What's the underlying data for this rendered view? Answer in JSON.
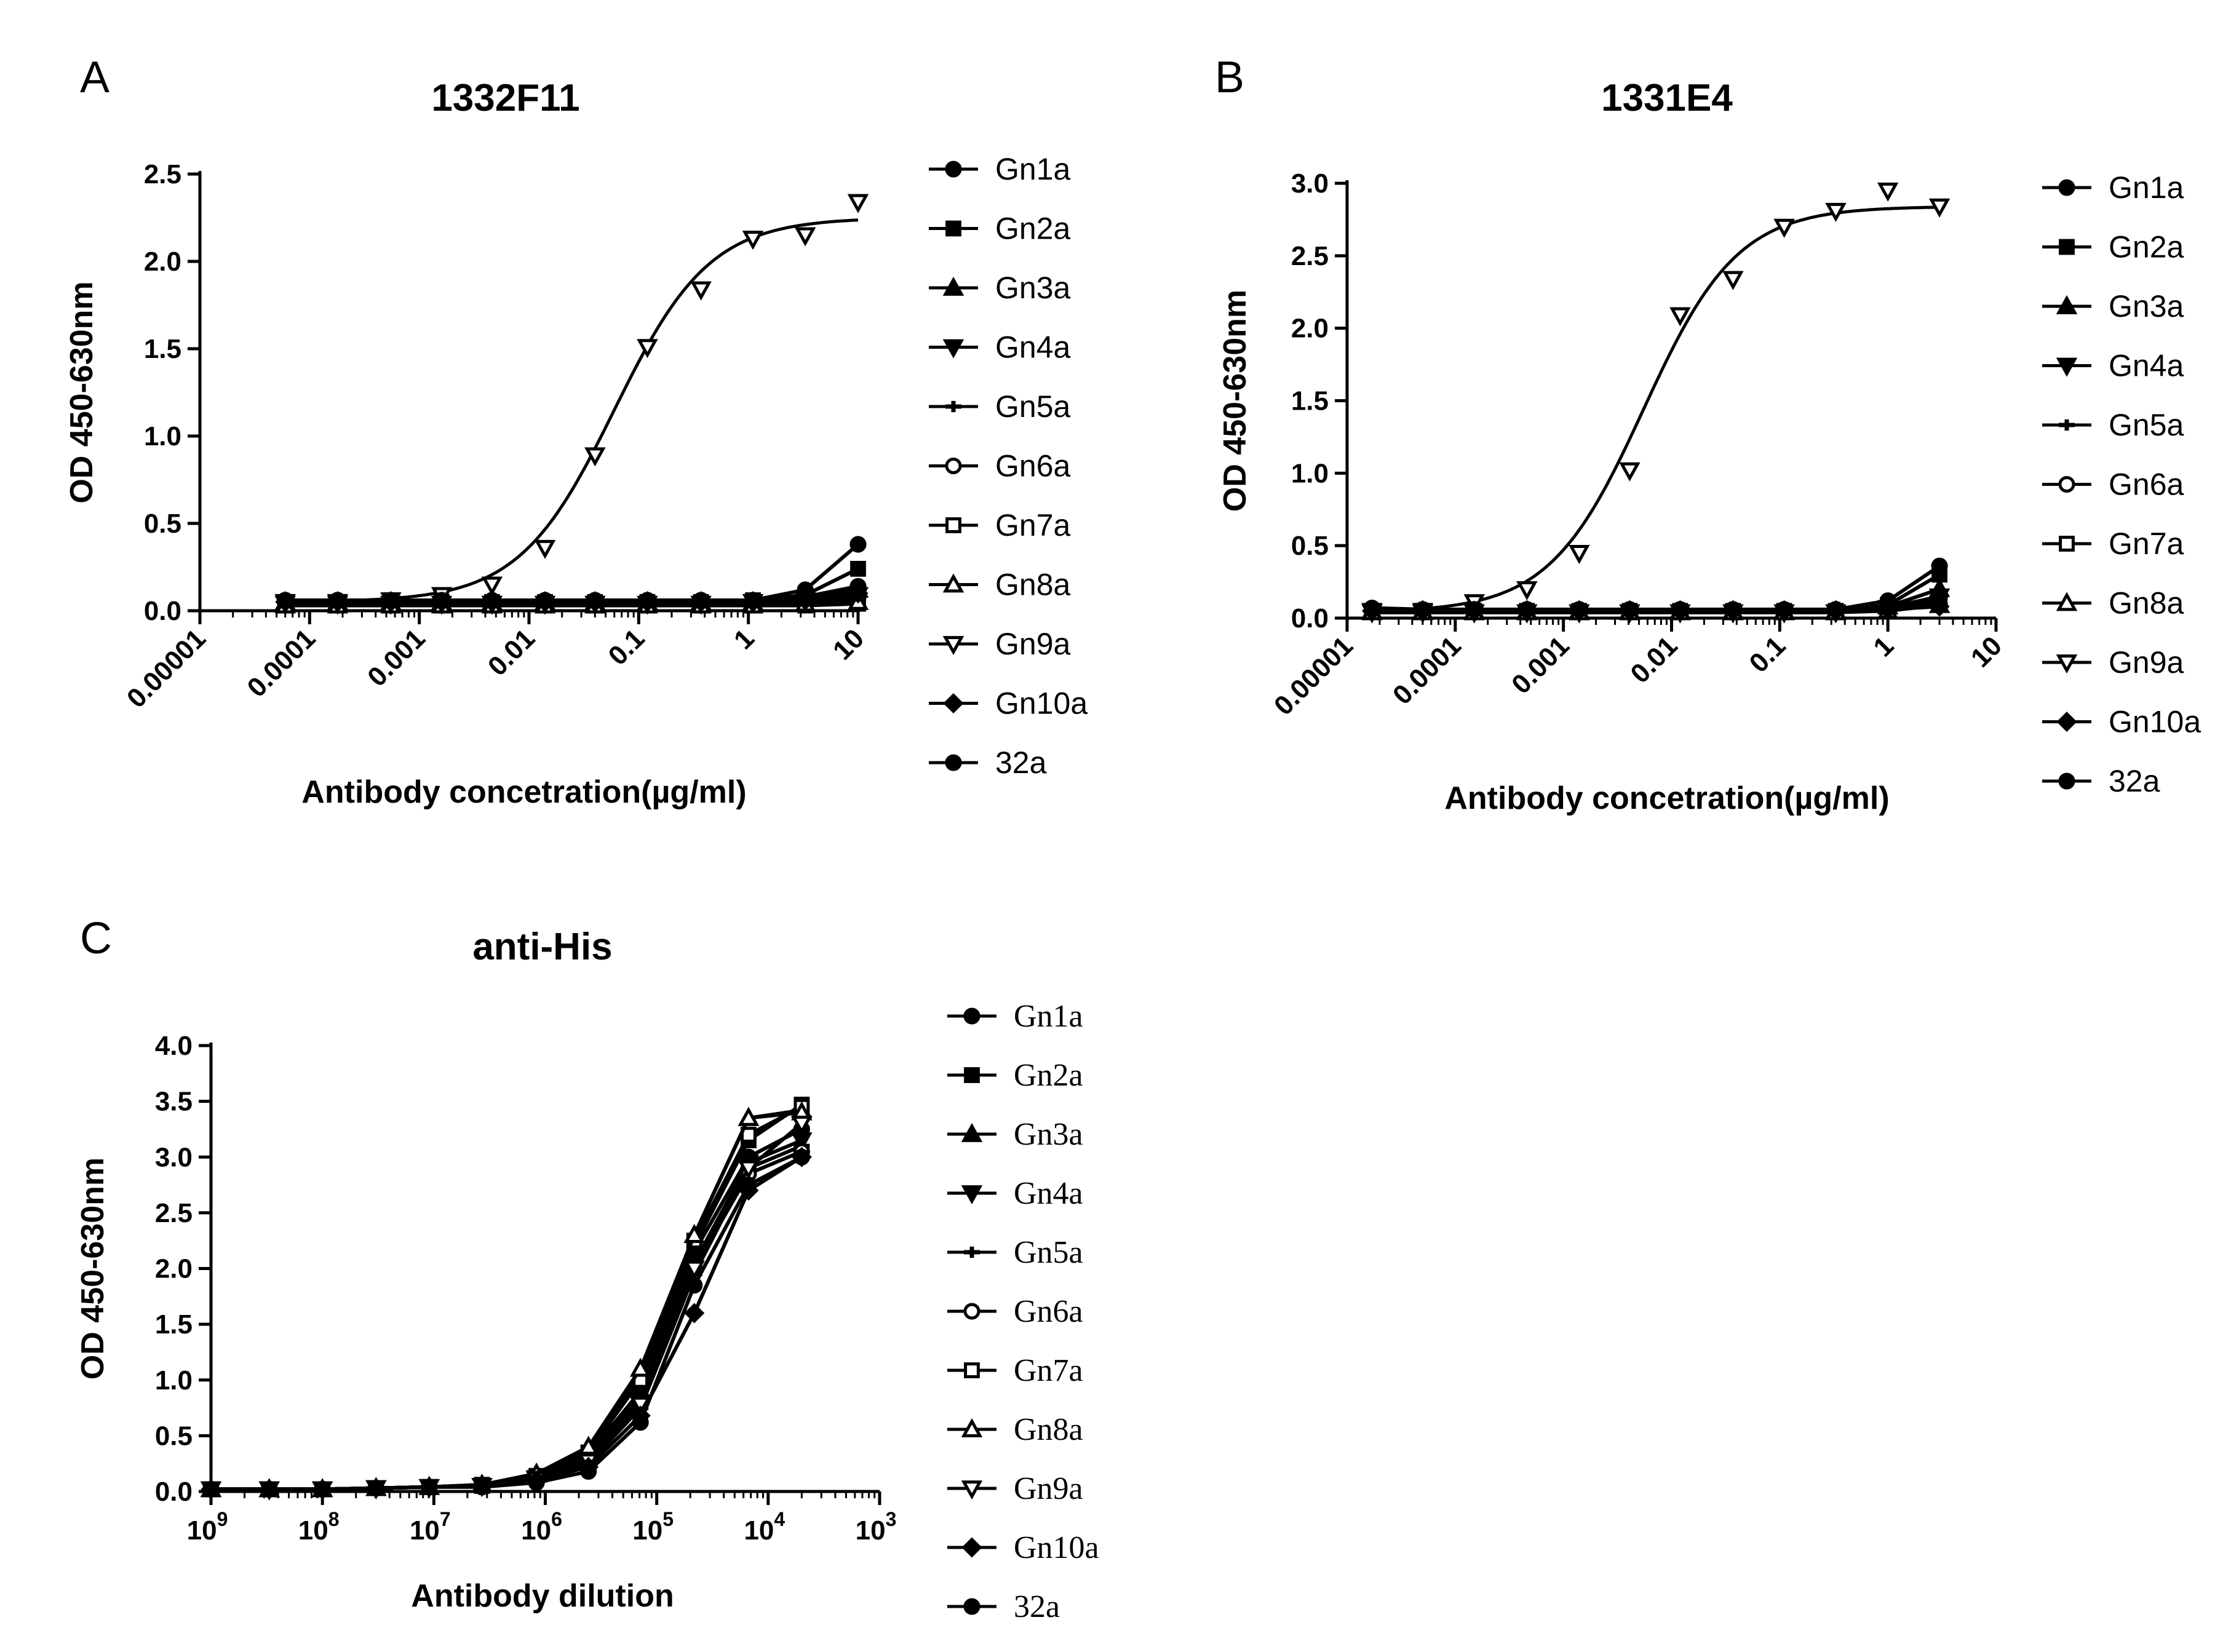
{
  "figure": {
    "background": "#ffffff",
    "ink": "#000000"
  },
  "chart_data": [
    {
      "panel": "A",
      "type": "line",
      "title": "1332F11",
      "xlabel": "Antibody concetration(µg/ml)",
      "ylabel": "OD 450-630nm",
      "xscale": "log10",
      "xlim": [
        1e-05,
        10
      ],
      "ylim": [
        0,
        2.5
      ],
      "xtick_labels": [
        "0.00001",
        "0.0001",
        "0.001",
        "0.01",
        "0.1",
        "1",
        "10"
      ],
      "ytick_labels": [
        "0.0",
        "0.5",
        "1.0",
        "1.5",
        "2.0",
        "2.5"
      ],
      "legend_position": "right",
      "x": [
        6e-05,
        0.00018,
        0.00055,
        0.0016,
        0.0046,
        0.014,
        0.04,
        0.12,
        0.37,
        1.1,
        3.3,
        10
      ],
      "series": [
        {
          "name": "Gn1a",
          "marker": "circle",
          "values": [
            0.06,
            0.06,
            0.06,
            0.06,
            0.05,
            0.05,
            0.05,
            0.05,
            0.05,
            0.06,
            0.12,
            0.38
          ]
        },
        {
          "name": "Gn2a",
          "marker": "square",
          "values": [
            0.05,
            0.05,
            0.05,
            0.05,
            0.05,
            0.05,
            0.05,
            0.05,
            0.05,
            0.06,
            0.09,
            0.24
          ]
        },
        {
          "name": "Gn3a",
          "marker": "triangle-up",
          "values": [
            0.05,
            0.05,
            0.05,
            0.05,
            0.05,
            0.05,
            0.05,
            0.05,
            0.05,
            0.05,
            0.07,
            0.12
          ]
        },
        {
          "name": "Gn4a",
          "marker": "triangle-down",
          "values": [
            0.04,
            0.04,
            0.04,
            0.04,
            0.04,
            0.04,
            0.04,
            0.04,
            0.04,
            0.05,
            0.06,
            0.09
          ]
        },
        {
          "name": "Gn5a",
          "marker": "plus",
          "values": [
            0.04,
            0.04,
            0.04,
            0.04,
            0.04,
            0.04,
            0.04,
            0.04,
            0.04,
            0.04,
            0.05,
            0.07
          ]
        },
        {
          "name": "Gn6a",
          "marker": "circle-open",
          "values": [
            0.05,
            0.05,
            0.05,
            0.05,
            0.05,
            0.05,
            0.05,
            0.05,
            0.05,
            0.05,
            0.06,
            0.08
          ]
        },
        {
          "name": "Gn7a",
          "marker": "square-open",
          "values": [
            0.03,
            0.03,
            0.03,
            0.03,
            0.03,
            0.03,
            0.03,
            0.03,
            0.03,
            0.03,
            0.03,
            0.04
          ]
        },
        {
          "name": "Gn8a",
          "marker": "triangle-up-open",
          "values": [
            0.03,
            0.03,
            0.03,
            0.03,
            0.03,
            0.03,
            0.03,
            0.03,
            0.03,
            0.03,
            0.04,
            0.05
          ]
        },
        {
          "name": "Gn9a",
          "marker": "triangle-down-open",
          "fit": {
            "bottom": 0.05,
            "top": 2.25,
            "ec50": 0.06,
            "hill": 1.0
          },
          "values": [
            0.05,
            0.05,
            0.06,
            0.09,
            0.15,
            0.36,
            0.89,
            1.51,
            1.84,
            2.13,
            2.15,
            2.34
          ]
        },
        {
          "name": "Gn10a",
          "marker": "diamond",
          "values": [
            0.05,
            0.05,
            0.05,
            0.05,
            0.05,
            0.05,
            0.05,
            0.05,
            0.05,
            0.05,
            0.06,
            0.1
          ]
        },
        {
          "name": "32a",
          "marker": "circle",
          "values": [
            0.06,
            0.06,
            0.06,
            0.06,
            0.06,
            0.06,
            0.06,
            0.06,
            0.06,
            0.06,
            0.08,
            0.14
          ]
        }
      ]
    },
    {
      "panel": "B",
      "type": "line",
      "title": "1331E4",
      "xlabel": "Antibody concetration(µg/ml)",
      "ylabel": "OD 450-630nm",
      "xscale": "log10",
      "xlim": [
        1e-05,
        10
      ],
      "ylim": [
        0,
        3.0
      ],
      "xtick_labels": [
        "0.00001",
        "0.0001",
        "0.001",
        "0.01",
        "0.1",
        "1",
        "10"
      ],
      "ytick_labels": [
        "0.0",
        "0.5",
        "1.0",
        "1.5",
        "2.0",
        "2.5",
        "3.0"
      ],
      "legend_position": "right",
      "x": [
        1.7e-05,
        5e-05,
        0.00015,
        0.00046,
        0.0014,
        0.0041,
        0.012,
        0.037,
        0.11,
        0.33,
        1.0,
        3.0
      ],
      "series": [
        {
          "name": "Gn1a",
          "marker": "circle",
          "values": [
            0.06,
            0.05,
            0.05,
            0.05,
            0.05,
            0.05,
            0.05,
            0.05,
            0.05,
            0.06,
            0.12,
            0.36
          ]
        },
        {
          "name": "Gn2a",
          "marker": "square",
          "values": [
            0.05,
            0.05,
            0.05,
            0.05,
            0.05,
            0.05,
            0.05,
            0.05,
            0.05,
            0.05,
            0.09,
            0.3
          ]
        },
        {
          "name": "Gn3a",
          "marker": "triangle-up",
          "values": [
            0.05,
            0.05,
            0.05,
            0.05,
            0.05,
            0.05,
            0.05,
            0.05,
            0.05,
            0.05,
            0.08,
            0.2
          ]
        },
        {
          "name": "Gn4a",
          "marker": "triangle-down",
          "values": [
            0.04,
            0.04,
            0.04,
            0.04,
            0.04,
            0.04,
            0.04,
            0.04,
            0.04,
            0.04,
            0.07,
            0.15
          ]
        },
        {
          "name": "Gn5a",
          "marker": "plus",
          "values": [
            0.04,
            0.04,
            0.04,
            0.04,
            0.04,
            0.04,
            0.04,
            0.04,
            0.04,
            0.04,
            0.06,
            0.12
          ]
        },
        {
          "name": "Gn6a",
          "marker": "circle-open",
          "values": [
            0.05,
            0.05,
            0.05,
            0.05,
            0.05,
            0.05,
            0.05,
            0.05,
            0.05,
            0.05,
            0.06,
            0.1
          ]
        },
        {
          "name": "Gn7a",
          "marker": "square-open",
          "values": [
            0.04,
            0.04,
            0.04,
            0.04,
            0.04,
            0.04,
            0.04,
            0.04,
            0.04,
            0.04,
            0.05,
            0.13
          ]
        },
        {
          "name": "Gn8a",
          "marker": "triangle-up-open",
          "values": [
            0.04,
            0.04,
            0.04,
            0.04,
            0.04,
            0.04,
            0.04,
            0.04,
            0.04,
            0.04,
            0.05,
            0.09
          ]
        },
        {
          "name": "Gn9a",
          "marker": "triangle-down-open",
          "fit": {
            "bottom": 0.04,
            "top": 2.84,
            "ec50": 0.0055,
            "hill": 1.0
          },
          "values": [
            0.05,
            0.05,
            0.11,
            0.2,
            0.45,
            1.02,
            2.09,
            2.34,
            2.7,
            2.81,
            2.95,
            2.84
          ]
        },
        {
          "name": "Gn10a",
          "marker": "diamond",
          "values": [
            0.05,
            0.05,
            0.05,
            0.05,
            0.05,
            0.05,
            0.05,
            0.05,
            0.05,
            0.05,
            0.06,
            0.08
          ]
        },
        {
          "name": "32a",
          "marker": "circle",
          "values": [
            0.07,
            0.06,
            0.06,
            0.06,
            0.06,
            0.06,
            0.06,
            0.06,
            0.06,
            0.06,
            0.08,
            0.14
          ]
        }
      ]
    },
    {
      "panel": "C",
      "type": "line",
      "title": "anti-His",
      "xlabel": "Antibody dilution",
      "ylabel": "OD 450-630nm",
      "xscale": "log10-reversed",
      "xlim": [
        1000000000,
        1000
      ],
      "ylim": [
        0,
        4.0
      ],
      "xtick_labels": [
        {
          "base": "10",
          "exp": "9"
        },
        {
          "base": "10",
          "exp": "8"
        },
        {
          "base": "10",
          "exp": "7"
        },
        {
          "base": "10",
          "exp": "6"
        },
        {
          "base": "10",
          "exp": "5"
        },
        {
          "base": "10",
          "exp": "4"
        },
        {
          "base": "10",
          "exp": "3"
        }
      ],
      "ytick_labels": [
        "0.0",
        "0.5",
        "1.0",
        "1.5",
        "2.0",
        "2.5",
        "3.0",
        "3.5",
        "4.0"
      ],
      "legend_position": "right",
      "x": [
        1000000000,
        300000000,
        100000000,
        33000000,
        11000000,
        3700000,
        1200000,
        410000,
        140000,
        46000,
        15000,
        5000
      ],
      "series": [
        {
          "name": "Gn1a",
          "marker": "circle",
          "values": [
            0.02,
            0.02,
            0.02,
            0.03,
            0.04,
            0.05,
            0.12,
            0.3,
            0.85,
            2.15,
            3.0,
            3.25
          ]
        },
        {
          "name": "Gn2a",
          "marker": "square",
          "values": [
            0.02,
            0.02,
            0.02,
            0.03,
            0.04,
            0.05,
            0.13,
            0.33,
            0.9,
            2.2,
            3.15,
            3.47
          ]
        },
        {
          "name": "Gn3a",
          "marker": "triangle-up",
          "values": [
            0.02,
            0.02,
            0.02,
            0.03,
            0.04,
            0.06,
            0.15,
            0.38,
            1.05,
            2.3,
            3.35,
            3.42
          ]
        },
        {
          "name": "Gn4a",
          "marker": "triangle-down",
          "values": [
            0.02,
            0.02,
            0.02,
            0.03,
            0.04,
            0.05,
            0.12,
            0.3,
            0.8,
            2.05,
            2.95,
            3.15
          ]
        },
        {
          "name": "Gn5a",
          "marker": "plus",
          "values": [
            0.02,
            0.02,
            0.02,
            0.03,
            0.04,
            0.05,
            0.1,
            0.25,
            0.75,
            1.95,
            2.9,
            3.1
          ]
        },
        {
          "name": "Gn6a",
          "marker": "circle-open",
          "values": [
            0.02,
            0.02,
            0.02,
            0.03,
            0.04,
            0.05,
            0.12,
            0.28,
            0.8,
            2.0,
            2.85,
            3.05
          ]
        },
        {
          "name": "Gn7a",
          "marker": "square-open",
          "values": [
            0.02,
            0.02,
            0.02,
            0.03,
            0.04,
            0.06,
            0.14,
            0.35,
            1.0,
            2.25,
            3.2,
            3.45
          ]
        },
        {
          "name": "Gn8a",
          "marker": "triangle-up-open",
          "values": [
            0.02,
            0.02,
            0.02,
            0.03,
            0.04,
            0.06,
            0.16,
            0.4,
            1.1,
            2.3,
            3.35,
            3.4
          ]
        },
        {
          "name": "Gn9a",
          "marker": "triangle-down-open",
          "values": [
            0.02,
            0.02,
            0.02,
            0.03,
            0.04,
            0.05,
            0.11,
            0.27,
            0.78,
            2.0,
            2.9,
            3.3
          ]
        },
        {
          "name": "Gn10a",
          "marker": "diamond",
          "values": [
            0.02,
            0.02,
            0.02,
            0.03,
            0.04,
            0.05,
            0.1,
            0.22,
            0.68,
            1.6,
            2.7,
            3.0
          ]
        },
        {
          "name": "32a",
          "marker": "circle",
          "values": [
            0.02,
            0.02,
            0.02,
            0.03,
            0.04,
            0.04,
            0.08,
            0.18,
            0.62,
            1.85,
            2.75,
            3.0
          ]
        }
      ]
    }
  ]
}
